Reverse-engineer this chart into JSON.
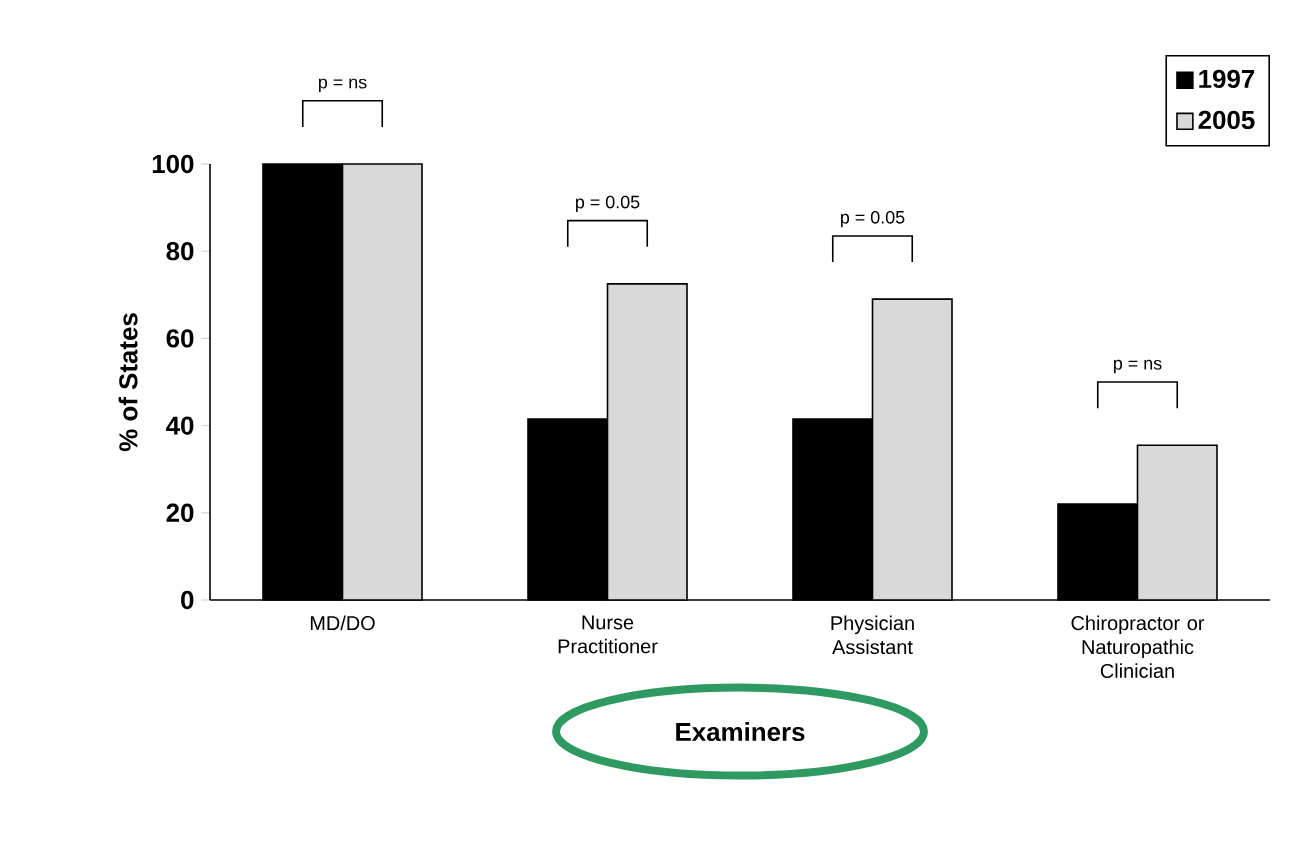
{
  "chart_data": {
    "type": "bar",
    "xlabel": "Examiners",
    "ylabel": "% of States",
    "categories": [
      "MD/DO",
      "Nurse Practitioner",
      "Physician Assistant",
      "Chiropractor or Naturopathic Clinician"
    ],
    "series": [
      {
        "name": "1997",
        "color": "#000000",
        "values": [
          100,
          41.5,
          41.5,
          22
        ]
      },
      {
        "name": "2005",
        "color": "#d9d9d9",
        "values": [
          100,
          72.5,
          69,
          35.5
        ]
      }
    ],
    "ylim": [
      0,
      100
    ],
    "yticks": [
      0,
      20,
      40,
      60,
      80,
      100
    ],
    "legend": "top right",
    "annotations": [
      "p = ns",
      "p = 0.05",
      "p = 0.05",
      "p = ns"
    ]
  }
}
